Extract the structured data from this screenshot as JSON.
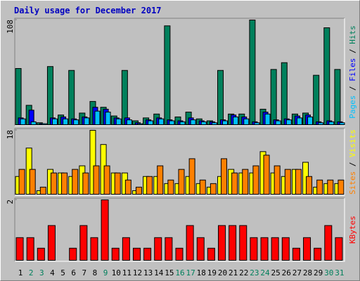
{
  "title": "Daily usage for December 2017",
  "legend_separator": " / ",
  "chart_data": [
    {
      "type": "bar",
      "ylim": [
        0,
        108
      ],
      "yticks": [
        108
      ],
      "series": [
        {
          "name": "Hits",
          "color": "#00805c",
          "values": [
            58,
            20,
            2,
            60,
            10,
            56,
            12,
            24,
            18,
            9,
            56,
            4,
            7,
            11,
            102,
            8,
            13,
            6,
            4,
            56,
            11,
            11,
            108,
            16,
            57,
            64,
            11,
            12,
            51,
            100,
            57
          ]
        },
        {
          "name": "Files",
          "color": "#0000ff",
          "values": [
            7,
            15,
            1,
            7,
            8,
            6,
            8,
            18,
            16,
            7,
            7,
            2,
            5,
            7,
            5,
            4,
            7,
            4,
            3,
            5,
            10,
            8,
            3,
            13,
            5,
            6,
            9,
            10,
            3,
            4,
            3
          ]
        },
        {
          "name": "Pages",
          "color": "#00c0ff",
          "values": [
            6,
            3,
            1,
            6,
            6,
            5,
            7,
            14,
            13,
            6,
            5,
            1,
            4,
            6,
            4,
            3,
            5,
            3,
            2,
            4,
            8,
            6,
            2,
            11,
            4,
            5,
            7,
            8,
            2,
            3,
            2
          ]
        }
      ]
    },
    {
      "type": "bar",
      "ylim": [
        0,
        18
      ],
      "yticks": [
        18
      ],
      "series": [
        {
          "name": "Visits",
          "color": "#ffff00",
          "values": [
            5,
            13,
            1,
            7,
            6,
            5,
            8,
            18,
            14,
            6,
            6,
            1,
            5,
            5,
            3,
            3,
            5,
            3,
            2,
            5,
            7,
            6,
            6,
            12,
            6,
            5,
            7,
            9,
            2,
            3,
            3
          ]
        },
        {
          "name": "Sites",
          "color": "#ff8000",
          "values": [
            7,
            7,
            2,
            6,
            6,
            7,
            6,
            8,
            8,
            6,
            4,
            2,
            5,
            8,
            4,
            7,
            10,
            4,
            3,
            10,
            6,
            7,
            8,
            11,
            8,
            7,
            7,
            5,
            4,
            4,
            4
          ]
        }
      ]
    },
    {
      "type": "bar",
      "ylim": [
        0,
        2
      ],
      "yticks": [
        2
      ],
      "categories": [
        "1",
        "2",
        "3",
        "4",
        "5",
        "6",
        "7",
        "8",
        "9",
        "10",
        "11",
        "12",
        "13",
        "14",
        "15",
        "16",
        "17",
        "18",
        "19",
        "20",
        "21",
        "22",
        "23",
        "24",
        "25",
        "26",
        "27",
        "28",
        "29",
        "30",
        "31"
      ],
      "category_colors": [
        "#000000",
        "#00805c",
        "#00805c",
        "#000000",
        "#000000",
        "#000000",
        "#000000",
        "#000000",
        "#00805c",
        "#000000",
        "#000000",
        "#000000",
        "#000000",
        "#000000",
        "#000000",
        "#00805c",
        "#00805c",
        "#000000",
        "#000000",
        "#000000",
        "#000000",
        "#000000",
        "#00805c",
        "#00805c",
        "#000000",
        "#000000",
        "#000000",
        "#000000",
        "#000000",
        "#00805c",
        "#00805c"
      ],
      "series": [
        {
          "name": "KBytes",
          "color": "#ff0000",
          "values": [
            0.75,
            0.75,
            0.4,
            1.15,
            0,
            0.4,
            1.15,
            0.75,
            2,
            0.4,
            0.75,
            0.4,
            0.4,
            0.75,
            0.75,
            0.4,
            1.15,
            0.75,
            0.4,
            1.15,
            1.15,
            1.15,
            0.75,
            0.75,
            0.75,
            0.75,
            0.4,
            0.75,
            0.4,
            1.15,
            0.75
          ]
        }
      ]
    }
  ]
}
